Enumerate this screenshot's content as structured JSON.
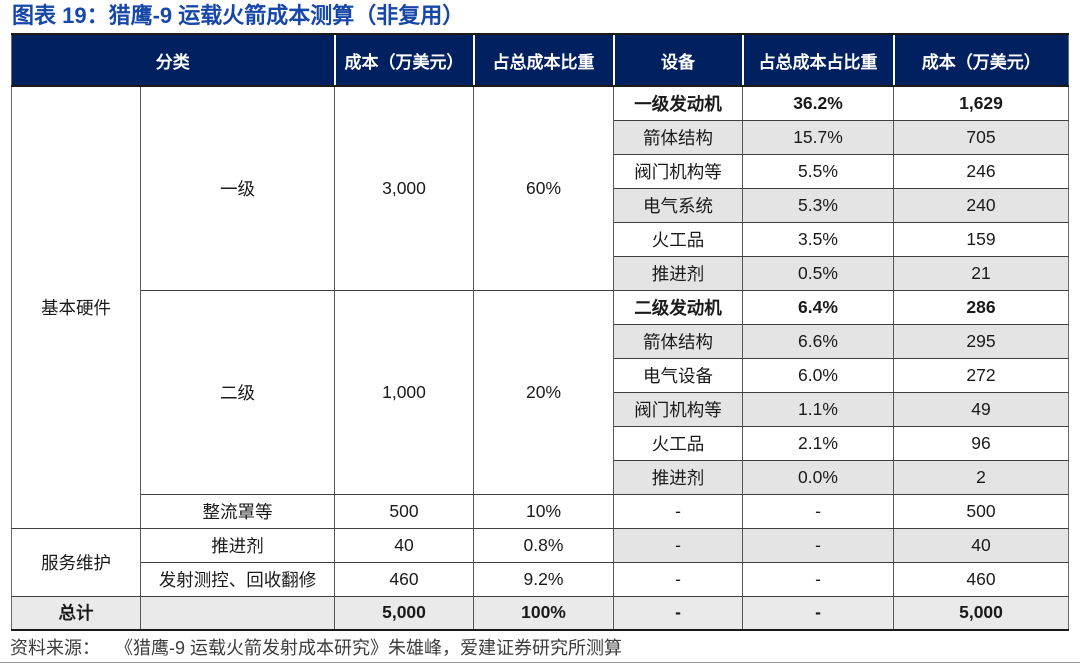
{
  "title": "图表 19：猎鹰-9 运载火箭成本测算（非复用）",
  "source": {
    "label": "资料来源：",
    "text": "《猎鹰-9 运载火箭发射成本研究》朱雄峰，爱建证券研究所测算"
  },
  "colors": {
    "header_bg": "#002060",
    "header_text": "#ffffff",
    "title_text": "#1747A8",
    "zebra_gray": "#E4E4E4",
    "total_row_gray": "#EAEAEA",
    "body_text": "#1a1a1a"
  },
  "table": {
    "header": {
      "category": "分类",
      "cost": "成本（万美元）",
      "share": "占总成本比重",
      "device": "设备",
      "device_share": "占总成本占比重",
      "device_cost": "成本（万美元）"
    },
    "left": {
      "hardware_label": "基本硬件",
      "service_label": "服务维护",
      "total_label": "总计",
      "groups": [
        {
          "name": "一级",
          "cost": "3,000",
          "share": "60%"
        },
        {
          "name": "二级",
          "cost": "1,000",
          "share": "20%"
        },
        {
          "name": "整流罩等",
          "cost": "500",
          "share": "10%"
        },
        {
          "name": "推进剂",
          "cost": "40",
          "share": "0.8%"
        },
        {
          "name": "发射测控、回收翻修",
          "cost": "460",
          "share": "9.2%"
        }
      ],
      "total": {
        "cost": "5,000",
        "share": "100%"
      }
    },
    "devices": [
      {
        "name": "一级发动机",
        "share": "36.2%",
        "cost": "1,629"
      },
      {
        "name": "箭体结构",
        "share": "15.7%",
        "cost": "705"
      },
      {
        "name": "阀门机构等",
        "share": "5.5%",
        "cost": "246"
      },
      {
        "name": "电气系统",
        "share": "5.3%",
        "cost": "240"
      },
      {
        "name": "火工品",
        "share": "3.5%",
        "cost": "159"
      },
      {
        "name": "推进剂",
        "share": "0.5%",
        "cost": "21"
      },
      {
        "name": "二级发动机",
        "share": "6.4%",
        "cost": "286"
      },
      {
        "name": "箭体结构",
        "share": "6.6%",
        "cost": "295"
      },
      {
        "name": "电气设备",
        "share": "6.0%",
        "cost": "272"
      },
      {
        "name": "阀门机构等",
        "share": "1.1%",
        "cost": "49"
      },
      {
        "name": "火工品",
        "share": "2.1%",
        "cost": "96"
      },
      {
        "name": "推进剂",
        "share": "0.0%",
        "cost": "2"
      },
      {
        "name": "-",
        "share": "-",
        "cost": "500"
      },
      {
        "name": "-",
        "share": "-",
        "cost": "40"
      },
      {
        "name": "-",
        "share": "-",
        "cost": "460"
      },
      {
        "name": "-",
        "share": "-",
        "cost": "5,000"
      }
    ]
  }
}
